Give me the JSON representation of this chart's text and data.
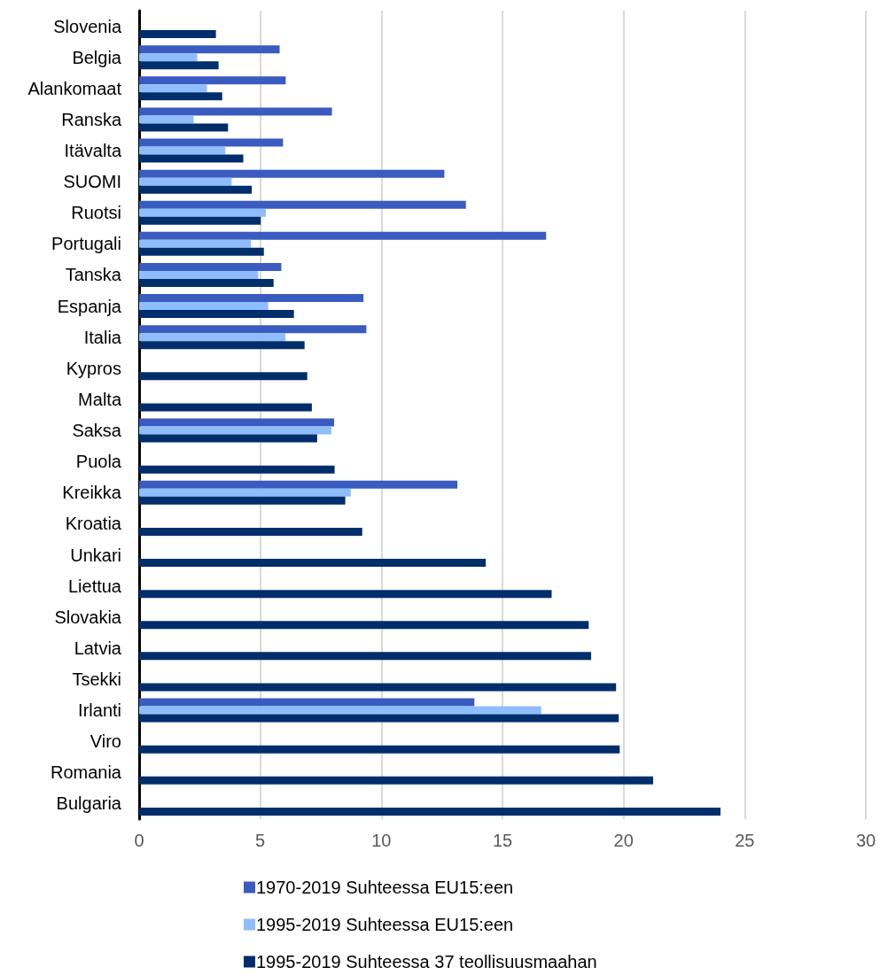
{
  "chart_data": {
    "type": "bar",
    "orientation": "horizontal",
    "categories": [
      "Slovenia",
      "Belgia",
      "Alankomaat",
      "Ranska",
      "Itävalta",
      "SUOMI",
      "Ruotsi",
      "Portugali",
      "Tanska",
      "Espanja",
      "Italia",
      "Kypros",
      "Malta",
      "Saksa",
      "Puola",
      "Kreikka",
      "Kroatia",
      "Unkari",
      "Liettua",
      "Slovakia",
      "Latvia",
      "Tsekki",
      "Irlanti",
      "Viro",
      "Romania",
      "Bulgaria"
    ],
    "series": [
      {
        "name": "1970-2019 Suhteessa EU15:een",
        "color": "#3a5bbf",
        "values": [
          null,
          5.8,
          6.05,
          7.96,
          5.94,
          12.6,
          13.49,
          16.8,
          5.87,
          9.26,
          9.38,
          null,
          null,
          8.05,
          null,
          13.14,
          null,
          null,
          null,
          null,
          null,
          null,
          13.84,
          null,
          null,
          null
        ]
      },
      {
        "name": "1995-2019 Suhteessa EU15:een",
        "color": "#8fbdfc",
        "values": [
          null,
          2.4,
          2.8,
          2.25,
          3.56,
          3.82,
          5.23,
          4.62,
          4.92,
          5.33,
          6.04,
          null,
          null,
          7.94,
          null,
          8.74,
          null,
          null,
          null,
          null,
          null,
          null,
          16.6,
          null,
          null,
          null
        ]
      },
      {
        "name": "1995-2019 Suhteessa 37 teollisuusmaahan",
        "color": "#002e6b",
        "values": [
          3.17,
          3.28,
          3.43,
          3.67,
          4.3,
          4.65,
          5.02,
          5.15,
          5.55,
          6.39,
          6.83,
          6.94,
          7.13,
          7.35,
          8.07,
          8.51,
          9.21,
          14.31,
          17.03,
          18.56,
          18.66,
          19.69,
          19.8,
          19.84,
          21.22,
          24.0
        ]
      }
    ],
    "xlim": [
      0,
      30
    ],
    "xticks": [
      0,
      5,
      10,
      15,
      20,
      25,
      30
    ],
    "grid": "x",
    "legend": "bottom"
  }
}
